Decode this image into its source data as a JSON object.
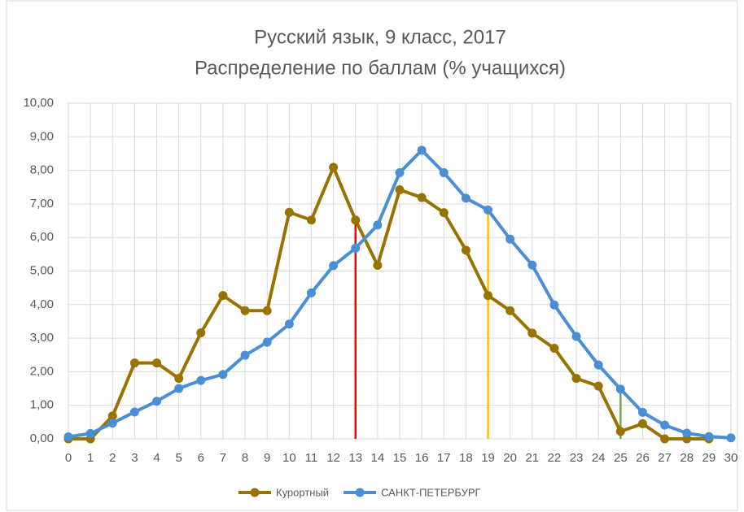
{
  "chart_data": {
    "type": "line",
    "title": "Русский язык, 9 класс, 2017",
    "subtitle": "Распределение по баллам (% учащихся)",
    "categories": [
      "0",
      "1",
      "2",
      "3",
      "4",
      "5",
      "6",
      "7",
      "8",
      "9",
      "10",
      "11",
      "12",
      "13",
      "14",
      "15",
      "16",
      "17",
      "18",
      "19",
      "20",
      "21",
      "22",
      "23",
      "24",
      "25",
      "26",
      "27",
      "28",
      "29",
      "30"
    ],
    "series": [
      {
        "name": "Курортный",
        "color": "#997300",
        "values": [
          0,
          0,
          0.68,
          2.26,
          2.26,
          1.8,
          3.16,
          4.27,
          3.82,
          3.82,
          6.75,
          6.52,
          8.09,
          6.52,
          5.17,
          7.42,
          7.19,
          6.74,
          5.62,
          4.27,
          3.82,
          3.15,
          2.7,
          1.8,
          1.57,
          0.22,
          0.45,
          0,
          0,
          0,
          null
        ]
      },
      {
        "name": "САНКТ-ПЕТЕРБУРГ",
        "color": "#4a8fd6",
        "values": [
          0.06,
          0.16,
          0.47,
          0.8,
          1.12,
          1.5,
          1.74,
          1.92,
          2.49,
          2.88,
          3.42,
          4.35,
          5.16,
          5.68,
          6.37,
          7.93,
          8.6,
          7.93,
          7.17,
          6.82,
          5.95,
          5.18,
          3.99,
          3.05,
          2.2,
          1.48,
          0.79,
          0.41,
          0.17,
          0.07,
          0.03
        ]
      }
    ],
    "vertical_lines": [
      {
        "category": "13",
        "top": 6.52,
        "color": "#ff0000"
      },
      {
        "category": "19",
        "top": 6.82,
        "color": "#ffc000"
      },
      {
        "category": "25",
        "top": 1.48,
        "color": "#70ad47"
      }
    ],
    "ylim": [
      0,
      10
    ],
    "yticks": [
      {
        "value": 0,
        "label": "0,00"
      },
      {
        "value": 1,
        "label": "1,00"
      },
      {
        "value": 2,
        "label": "2,00"
      },
      {
        "value": 3,
        "label": "3,00"
      },
      {
        "value": 4,
        "label": "4,00"
      },
      {
        "value": 5,
        "label": "5,00"
      },
      {
        "value": 6,
        "label": "6,00"
      },
      {
        "value": 7,
        "label": "7,00"
      },
      {
        "value": 8,
        "label": "8,00"
      },
      {
        "value": 9,
        "label": "9,00"
      },
      {
        "value": 10,
        "label": "10,00"
      }
    ],
    "grid": true,
    "legend": "bottom"
  }
}
